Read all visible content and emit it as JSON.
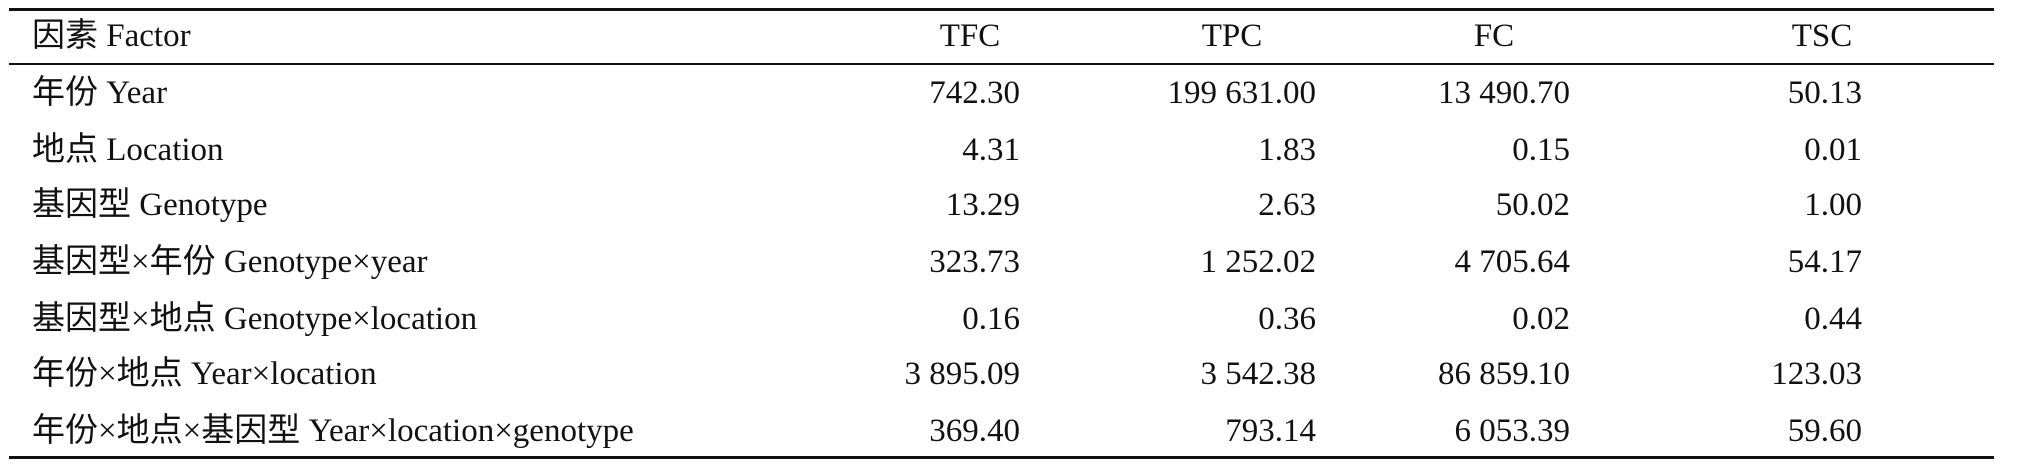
{
  "table": {
    "header": [
      "因素 Factor",
      "TFC",
      "TPC",
      "FC",
      "TSC"
    ],
    "rows": [
      [
        "年份 Year",
        "742.30",
        "199 631.00",
        "13 490.70",
        "50.13"
      ],
      [
        "地点 Location",
        "4.31",
        "1.83",
        "0.15",
        "0.01"
      ],
      [
        "基因型 Genotype",
        "13.29",
        "2.63",
        "50.02",
        "1.00"
      ],
      [
        "基因型×年份 Genotype×year",
        "323.73",
        "1 252.02",
        "4 705.64",
        "54.17"
      ],
      [
        "基因型×地点 Genotype×location",
        "0.16",
        "0.36",
        "0.02",
        "0.44"
      ],
      [
        "年份×地点 Year×location",
        "3 895.09",
        "3 542.38",
        "86 859.10",
        "123.03"
      ],
      [
        "年份×地点×基因型 Year×location×genotype",
        "369.40",
        "793.14",
        "6 053.39",
        "59.60"
      ]
    ]
  }
}
